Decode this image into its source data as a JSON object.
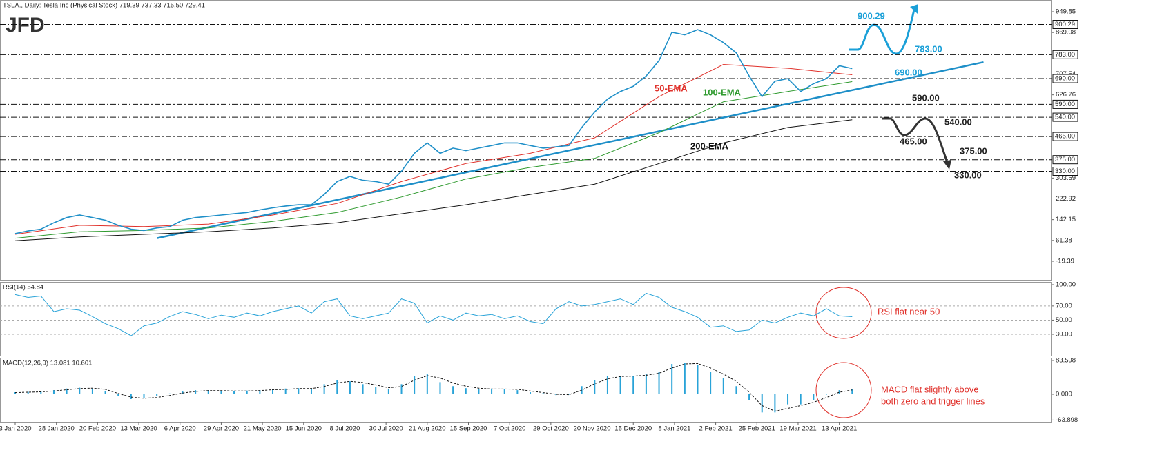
{
  "chart_data": [
    {
      "type": "line",
      "title": "TSLA., Daily:  Tesla Inc (Physical Stock)  719.39 737.33 715.50 729.41",
      "logo": "JFD",
      "color": "#1e8fc8",
      "xlim": [
        -5.9,
        402.4
      ],
      "ylim": [
        -94.4,
        995.4
      ],
      "yticks": [
        949.85,
        869.08,
        707.54,
        {
          "value": 626.76,
          "label": "626.76"
        },
        303.69,
        222.92,
        142.15,
        61.38,
        -19.39
      ],
      "levels": [
        {
          "value": 900.29,
          "label": "900.29"
        },
        {
          "value": 783,
          "label": "783.00"
        },
        {
          "value": 690,
          "label": "690.00"
        },
        {
          "value": 590,
          "label": "590.00"
        },
        {
          "value": 540,
          "label": "540.00"
        },
        {
          "value": 465,
          "label": "465.00"
        },
        {
          "value": 375,
          "label": "375.00"
        },
        {
          "value": 330,
          "label": "330.00"
        }
      ],
      "x": [
        0,
        5,
        10,
        15,
        20,
        25,
        30,
        35,
        40,
        45,
        50,
        55,
        60,
        65,
        70,
        75,
        80,
        85,
        90,
        95,
        100,
        105,
        110,
        115,
        120,
        125,
        130,
        135,
        140,
        145,
        150,
        155,
        160,
        165,
        170,
        175,
        180,
        185,
        190,
        195,
        200,
        205,
        210,
        215,
        220,
        225,
        230,
        235,
        240,
        245,
        250,
        255,
        260,
        265,
        270,
        275,
        280,
        285,
        290,
        295,
        300,
        305,
        310,
        315,
        320,
        325
      ],
      "values": [
        88,
        98,
        105,
        130,
        150,
        160,
        150,
        140,
        120,
        105,
        100,
        110,
        115,
        140,
        150,
        155,
        160,
        165,
        170,
        180,
        188,
        195,
        200,
        200,
        240,
        290,
        310,
        295,
        290,
        280,
        330,
        400,
        440,
        400,
        420,
        410,
        420,
        430,
        440,
        440,
        430,
        420,
        425,
        430,
        500,
        560,
        610,
        640,
        660,
        700,
        760,
        870,
        860,
        880,
        860,
        830,
        790,
        700,
        620,
        680,
        690,
        640,
        670,
        690,
        740,
        729
      ],
      "overlays": [
        {
          "label": "50-EMA",
          "color": "#e0302a",
          "x": [
            0,
            25,
            50,
            75,
            100,
            125,
            150,
            175,
            200,
            225,
            250,
            275,
            300,
            325
          ],
          "values": [
            85,
            120,
            115,
            125,
            160,
            205,
            290,
            360,
            400,
            460,
            620,
            745,
            730,
            705
          ]
        },
        {
          "label": "100-EMA",
          "color": "#2e9a2e",
          "x": [
            0,
            25,
            50,
            75,
            100,
            125,
            150,
            175,
            200,
            225,
            250,
            275,
            300,
            325
          ],
          "values": [
            70,
            95,
            100,
            110,
            135,
            170,
            230,
            300,
            345,
            380,
            480,
            600,
            640,
            678
          ]
        },
        {
          "label": "200-EMA",
          "color": "#111111",
          "x": [
            0,
            25,
            50,
            75,
            100,
            125,
            150,
            175,
            200,
            225,
            250,
            275,
            300,
            325
          ],
          "values": [
            60,
            75,
            85,
            95,
            110,
            130,
            165,
            200,
            240,
            280,
            360,
            440,
            500,
            530
          ]
        }
      ],
      "trendline": {
        "color": "#1e8fc8",
        "x": [
          55,
          376
        ],
        "values": [
          70,
          754
        ]
      },
      "annotations": [
        {
          "text": "900.29",
          "color": "#1ba0d8"
        },
        {
          "text": "783.00",
          "color": "#1ba0d8"
        },
        {
          "text": "690.00",
          "color": "#1ba0d8"
        },
        {
          "text": "590.00",
          "color": "#222"
        },
        {
          "text": "540.00",
          "color": "#222"
        },
        {
          "text": "465.00",
          "color": "#222"
        },
        {
          "text": "375.00",
          "color": "#222"
        },
        {
          "text": "330.00",
          "color": "#222"
        }
      ]
    },
    {
      "type": "line",
      "title": "RSI(14) 54.84",
      "color": "#29a3d8",
      "xlim": [
        -5.9,
        402.4
      ],
      "ylim": [
        -1.1,
        103.9
      ],
      "yticks": [
        {
          "value": 100,
          "label": "100.00"
        },
        {
          "value": 70,
          "label": "70.00"
        },
        {
          "value": 50,
          "label": "50.00"
        },
        {
          "value": 30,
          "label": "30.00"
        }
      ],
      "grid": true,
      "annotation": "RSI flat near 50",
      "x": [
        0,
        5,
        10,
        15,
        20,
        25,
        30,
        35,
        40,
        45,
        50,
        55,
        60,
        65,
        70,
        75,
        80,
        85,
        90,
        95,
        100,
        105,
        110,
        115,
        120,
        125,
        130,
        135,
        140,
        145,
        150,
        155,
        160,
        165,
        170,
        175,
        180,
        185,
        190,
        195,
        200,
        205,
        210,
        215,
        220,
        225,
        230,
        235,
        240,
        245,
        250,
        255,
        260,
        265,
        270,
        275,
        280,
        285,
        290,
        295,
        300,
        305,
        310,
        315,
        320,
        325
      ],
      "values": [
        86,
        82,
        84,
        62,
        66,
        64,
        55,
        45,
        38,
        28,
        42,
        46,
        55,
        62,
        58,
        52,
        57,
        54,
        60,
        56,
        62,
        66,
        70,
        60,
        76,
        80,
        56,
        52,
        56,
        60,
        80,
        74,
        46,
        56,
        50,
        60,
        56,
        58,
        52,
        56,
        48,
        45,
        66,
        76,
        70,
        72,
        76,
        80,
        72,
        88,
        82,
        68,
        62,
        54,
        40,
        42,
        34,
        36,
        50,
        46,
        54,
        60,
        56,
        66,
        56,
        54.84
      ]
    },
    {
      "type": "bar",
      "title": "MACD(12,26,9) 13.081 10.601",
      "color": "#29a3d8",
      "xlim": [
        -5.9,
        402.4
      ],
      "ylim": [
        -68.3,
        90.4
      ],
      "yticks": [
        83.598,
        {
          "value": 0,
          "label": "0.000"
        },
        -63.898
      ],
      "annotation": [
        "MACD flat slightly above",
        "both zero and trigger lines"
      ],
      "xticks": [
        {
          "value": 0,
          "label": "3 Jan 2020"
        },
        {
          "value": 16,
          "label": "28 Jan 2020"
        },
        {
          "value": 32,
          "label": "20 Feb 2020"
        },
        {
          "value": 48,
          "label": "13 Mar 2020"
        },
        {
          "value": 64,
          "label": "6 Apr 2020"
        },
        {
          "value": 80,
          "label": "29 Apr 2020"
        },
        {
          "value": 96,
          "label": "21 May 2020"
        },
        {
          "value": 112,
          "label": "15 Jun 2020"
        },
        {
          "value": 128,
          "label": "8 Jul 2020"
        },
        {
          "value": 144,
          "label": "30 Jul 2020"
        },
        {
          "value": 160,
          "label": "21 Aug 2020"
        },
        {
          "value": 176,
          "label": "15 Sep 2020"
        },
        {
          "value": 192,
          "label": "7 Oct 2020"
        },
        {
          "value": 208,
          "label": "29 Oct 2020"
        },
        {
          "value": 224,
          "label": "20 Nov 2020"
        },
        {
          "value": 240,
          "label": "15 Dec 2020"
        },
        {
          "value": 256,
          "label": "8 Jan 2021"
        },
        {
          "value": 272,
          "label": "2 Feb 2021"
        },
        {
          "value": 288,
          "label": "25 Feb 2021"
        },
        {
          "value": 304,
          "label": "19 Mar 2021"
        },
        {
          "value": 320,
          "label": "13 Apr 2021"
        }
      ],
      "x": [
        0,
        5,
        10,
        15,
        20,
        25,
        30,
        35,
        40,
        45,
        50,
        55,
        60,
        65,
        70,
        75,
        80,
        85,
        90,
        95,
        100,
        105,
        110,
        115,
        120,
        125,
        130,
        135,
        140,
        145,
        150,
        155,
        160,
        165,
        170,
        175,
        180,
        185,
        190,
        195,
        200,
        205,
        210,
        215,
        220,
        225,
        230,
        235,
        240,
        245,
        250,
        255,
        260,
        265,
        270,
        275,
        280,
        285,
        290,
        295,
        300,
        305,
        310,
        315,
        320,
        325
      ],
      "values": [
        5,
        6,
        7,
        10,
        14,
        16,
        14,
        8,
        -5,
        -12,
        -10,
        -5,
        2,
        8,
        10,
        10,
        9,
        8,
        9,
        10,
        12,
        14,
        15,
        14,
        25,
        35,
        32,
        25,
        18,
        12,
        25,
        45,
        50,
        30,
        20,
        15,
        12,
        14,
        13,
        10,
        5,
        3,
        -2,
        0,
        20,
        35,
        45,
        45,
        45,
        50,
        55,
        75,
        78,
        72,
        55,
        40,
        20,
        -15,
        -45,
        -45,
        -25,
        -25,
        -15,
        0,
        10,
        13.081
      ],
      "signal": [
        4,
        5,
        6,
        8,
        11,
        14,
        15,
        12,
        2,
        -7,
        -10,
        -8,
        -3,
        3,
        7,
        9,
        9,
        8,
        8,
        9,
        11,
        12,
        14,
        14,
        19,
        28,
        32,
        29,
        23,
        16,
        19,
        35,
        46,
        40,
        28,
        20,
        15,
        13,
        13,
        12,
        8,
        4,
        0,
        -1,
        10,
        26,
        38,
        44,
        45,
        47,
        52,
        65,
        75,
        76,
        65,
        50,
        32,
        5,
        -28,
        -42,
        -35,
        -28,
        -20,
        -8,
        5,
        10.601
      ]
    }
  ]
}
